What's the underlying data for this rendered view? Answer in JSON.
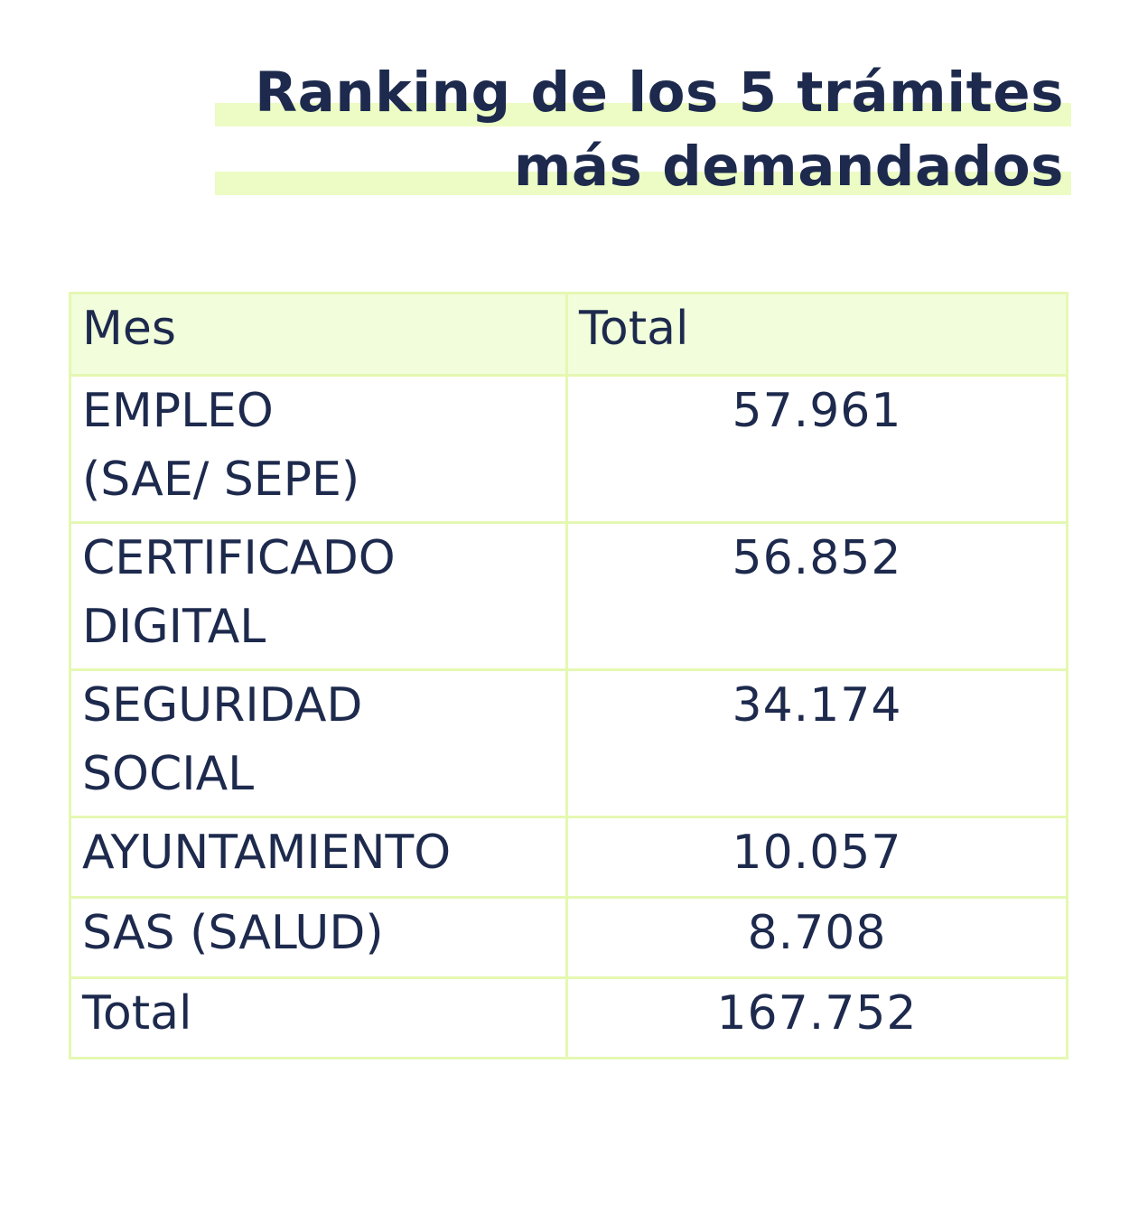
{
  "title": {
    "line1": "Ranking de los 5 trámites",
    "line2": "más demandados"
  },
  "colors": {
    "text": "#1d2a4d",
    "highlight": "#ecfcc4",
    "border": "#e5f8b2",
    "header_bg": "#f2fddb"
  },
  "table": {
    "headers": [
      "Mes",
      "Total"
    ],
    "rows": [
      {
        "name_line1": "EMPLEO",
        "name_line2": "(SAE/ SEPE)",
        "total": "57.961"
      },
      {
        "name_line1": "CERTIFICADO",
        "name_line2": "DIGITAL",
        "total": "56.852"
      },
      {
        "name_line1": "SEGURIDAD",
        "name_line2": "SOCIAL",
        "total": "34.174"
      },
      {
        "name_line1": "AYUNTAMIENTO",
        "name_line2": "",
        "total": "10.057"
      },
      {
        "name_line1": "SAS (SALUD)",
        "name_line2": "",
        "total": "8.708"
      }
    ],
    "total_row": {
      "label": "Total",
      "value": "167.752"
    }
  }
}
